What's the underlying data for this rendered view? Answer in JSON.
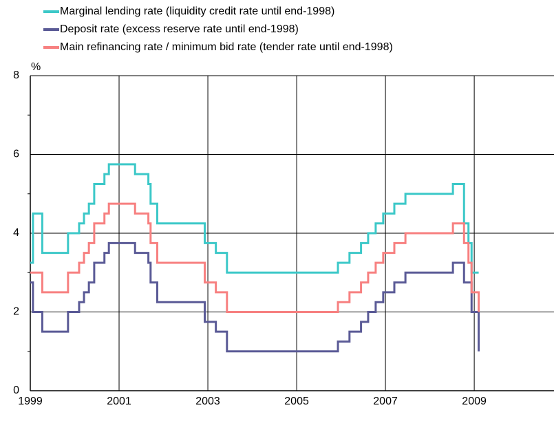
{
  "chart_data": {
    "type": "line",
    "step": true,
    "y_unit": "%",
    "x": [
      1999.0,
      1999.06,
      1999.27,
      1999.85,
      2000.1,
      2000.21,
      2000.32,
      2000.44,
      2000.67,
      2000.77,
      2001.36,
      2001.66,
      2001.71,
      2001.86,
      2002.93,
      2003.18,
      2003.43,
      2005.93,
      2006.19,
      2006.45,
      2006.61,
      2006.78,
      2006.95,
      2007.2,
      2007.45,
      2008.52,
      2008.77,
      2008.87,
      2008.94,
      2009.1
    ],
    "series": [
      {
        "name": "Marginal lending rate (liquidity credit rate until end-1998)",
        "color": "#3cc8c8",
        "values": [
          3.25,
          4.5,
          3.5,
          4.0,
          4.25,
          4.5,
          4.75,
          5.25,
          5.5,
          5.75,
          5.5,
          5.25,
          4.75,
          4.25,
          3.75,
          3.5,
          3.0,
          3.25,
          3.5,
          3.75,
          4.0,
          4.25,
          4.5,
          4.75,
          5.0,
          5.25,
          4.25,
          3.75,
          3.0,
          3.0
        ]
      },
      {
        "name": "Deposit rate (excess reserve rate until end-1998)",
        "color": "#5a5a96",
        "values": [
          2.75,
          2.0,
          1.5,
          2.0,
          2.25,
          2.5,
          2.75,
          3.25,
          3.5,
          3.75,
          3.5,
          3.25,
          2.75,
          2.25,
          1.75,
          1.5,
          1.0,
          1.25,
          1.5,
          1.75,
          2.0,
          2.25,
          2.5,
          2.75,
          3.0,
          3.25,
          2.75,
          2.75,
          2.0,
          1.0
        ]
      },
      {
        "name": "Main refinancing rate / minimum bid rate (tender rate until end-1998)",
        "color": "#f78080",
        "values": [
          3.0,
          3.0,
          2.5,
          3.0,
          3.25,
          3.5,
          3.75,
          4.25,
          4.5,
          4.75,
          4.5,
          4.25,
          3.75,
          3.25,
          2.75,
          2.5,
          2.0,
          2.25,
          2.5,
          2.75,
          3.0,
          3.25,
          3.5,
          3.75,
          4.0,
          4.25,
          3.75,
          3.25,
          2.5,
          2.0
        ]
      }
    ],
    "xlim": [
      1999,
      2010.75
    ],
    "xticks": [
      1999,
      2001,
      2003,
      2005,
      2007,
      2009
    ],
    "ylim": [
      0,
      8
    ],
    "yticks": [
      0,
      2,
      4,
      6,
      8
    ],
    "yminor_ticks": [
      1,
      3,
      5,
      7
    ],
    "grid": true,
    "legend": "top"
  }
}
